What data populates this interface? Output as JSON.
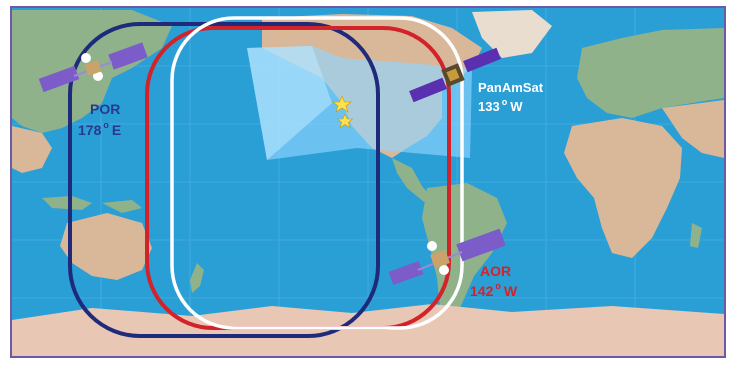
{
  "map": {
    "colors": {
      "ocean": "#2a9fd6",
      "land_green": "#8fb28a",
      "land_tan": "#d9b89a",
      "antarctica": "#e9c7b5",
      "coverage_highlight": "#8fd6ff",
      "por_ring": "#1f2a7a",
      "aor_ring": "#d2232a",
      "panamsat_ring": "#ffffff",
      "frame": "#6d5aa6"
    },
    "satellites": [
      {
        "id": "por",
        "name": "POR",
        "longitude": "178",
        "degree_symbol": "o",
        "direction": "E",
        "label_color": "#283a8e"
      },
      {
        "id": "panamsat",
        "name": "PanAmSat",
        "longitude": "133",
        "degree_symbol": "o",
        "direction": "W",
        "label_color": "#ffffff"
      },
      {
        "id": "aor",
        "name": "AOR",
        "longitude": "142",
        "degree_symbol": "o",
        "direction": "W",
        "label_color": "#d2232a"
      }
    ],
    "markers": [
      {
        "type": "star",
        "color": "#ffe14d"
      },
      {
        "type": "star",
        "color": "#ffe14d"
      }
    ]
  }
}
